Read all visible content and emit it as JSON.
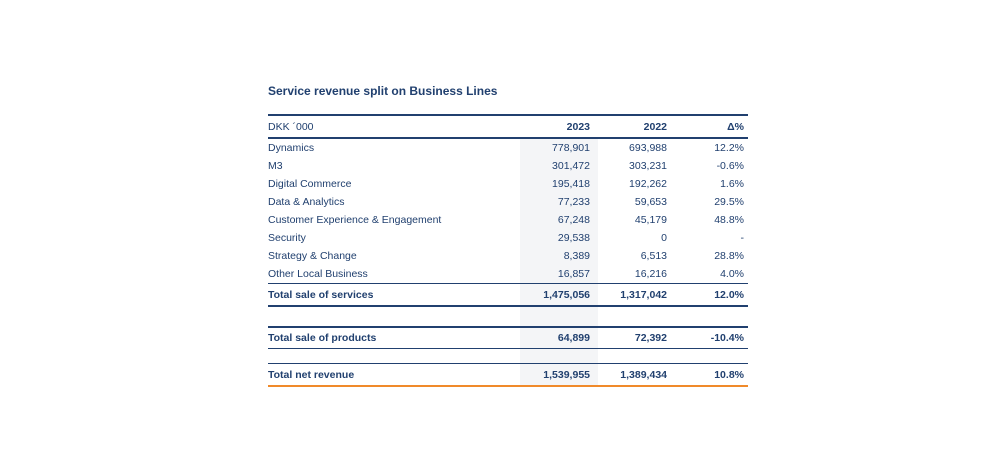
{
  "title": "Service revenue split on Business Lines",
  "colors": {
    "text_navy": "#21406f",
    "rule_navy": "#21406f",
    "accent_orange": "#f08a2a",
    "highlight_band_gray": "#f4f5f7",
    "page_background": "#ffffff"
  },
  "table": {
    "unit_header": "DKK ´000",
    "columns": [
      "2023",
      "2022",
      "Δ%"
    ],
    "highlighted_column": "2023",
    "rows": [
      {
        "label": "Dynamics",
        "y2023": "778,901",
        "y2022": "693,988",
        "delta": "12.2%"
      },
      {
        "label": "M3",
        "y2023": "301,472",
        "y2022": "303,231",
        "delta": "-0.6%"
      },
      {
        "label": "Digital Commerce",
        "y2023": "195,418",
        "y2022": "192,262",
        "delta": "1.6%"
      },
      {
        "label": "Data & Analytics",
        "y2023": "77,233",
        "y2022": "59,653",
        "delta": "29.5%"
      },
      {
        "label": "Customer Experience & Engagement",
        "y2023": "67,248",
        "y2022": "45,179",
        "delta": "48.8%"
      },
      {
        "label": "Security",
        "y2023": "29,538",
        "y2022": "0",
        "delta": "-"
      },
      {
        "label": "Strategy & Change",
        "y2023": "8,389",
        "y2022": "6,513",
        "delta": "28.8%"
      },
      {
        "label": "Other Local Business",
        "y2023": "16,857",
        "y2022": "16,216",
        "delta": "4.0%"
      }
    ],
    "totals": [
      {
        "label": "Total sale of services",
        "y2023": "1,475,056",
        "y2022": "1,317,042",
        "delta": "12.0%"
      },
      {
        "label": "Total sale of products",
        "y2023": "64,899",
        "y2022": "72,392",
        "delta": "-10.4%"
      },
      {
        "label": "Total net revenue",
        "y2023": "1,539,955",
        "y2022": "1,389,434",
        "delta": "10.8%"
      }
    ]
  }
}
